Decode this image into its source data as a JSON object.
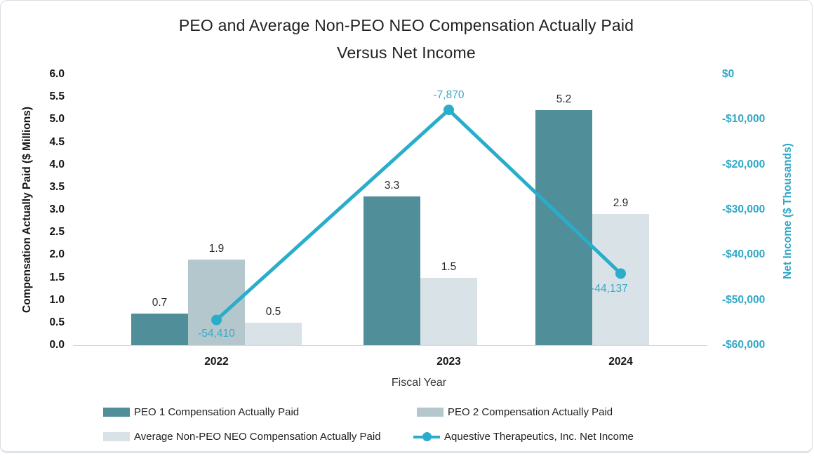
{
  "chart_data": {
    "type": "combo-bar-line-dual-axis",
    "title_line1": "PEO and Average Non-PEO NEO Compensation Actually Paid",
    "title_line2": "Versus Net Income",
    "categories": [
      "2022",
      "2023",
      "2024"
    ],
    "bar_series": [
      {
        "name": "PEO 1 Compensation Actually Paid",
        "color": "#508e9a",
        "values": [
          0.7,
          3.3,
          5.2
        ],
        "labels": [
          "0.7",
          "3.3",
          "5.2"
        ]
      },
      {
        "name": "PEO 2 Compensation Actually Paid",
        "color": "#b4c7cc",
        "values": [
          1.9,
          null,
          null
        ],
        "labels": [
          "1.9",
          null,
          null
        ]
      },
      {
        "name": "Average Non-PEO NEO Compensation Actually Paid",
        "color": "#d9e2e7",
        "values": [
          0.5,
          1.5,
          2.9
        ],
        "labels": [
          "0.5",
          "1.5",
          "2.9"
        ]
      }
    ],
    "line_series": {
      "name": "Aquestive Therapeutics, Inc. Net Income",
      "color": "#29adca",
      "values": [
        -54410,
        -7870,
        -44137
      ],
      "labels": [
        "-54,410",
        "-7,870",
        "-44,137"
      ],
      "label_placements": [
        "below",
        "above",
        "below-left"
      ]
    },
    "left_axis": {
      "label": "Compensation Actually Paid ($ Millions)",
      "min": 0,
      "max": 6,
      "ticks": [
        "6.0",
        "5.5",
        "5.0",
        "4.5",
        "4.0",
        "3.5",
        "3.0",
        "2.5",
        "2.0",
        "1.5",
        "1.0",
        "0.5",
        "0.0"
      ]
    },
    "right_axis": {
      "label": "Net Income ($ Thousands)",
      "min": -60000,
      "max": 0,
      "ticks": [
        "$0",
        "-$10,000",
        "-$20,000",
        "-$30,000",
        "-$40,000",
        "-$50,000",
        "-$60,000"
      ],
      "color": "#2fa7c6"
    },
    "x_axis": {
      "label": "Fiscal Year",
      "ticks": [
        "2022",
        "2023",
        "2024"
      ]
    },
    "grid": false,
    "legend_position": "bottom-two-rows"
  },
  "legend": {
    "item1": "PEO 1 Compensation Actually Paid",
    "item2": "PEO 2 Compensation Actually Paid",
    "item3": "Average Non-PEO NEO Compensation Actually Paid",
    "item4": "Aquestive Therapeutics, Inc. Net Income"
  }
}
